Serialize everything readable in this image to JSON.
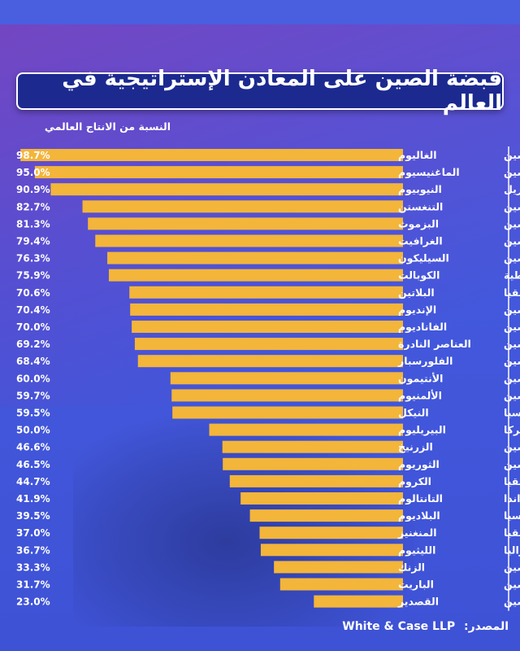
{
  "colors": {
    "bar": "#f3b53a",
    "divider": "#ffffff",
    "title_bg": "#1c2a8f",
    "text": "#ffffff"
  },
  "title": "قبضة الصين على المعادن الإستراتيجية في العالم",
  "subtitle": "النسبة  من الانتاج العالمي",
  "source": {
    "label": "المصدر:",
    "value": "White & Case LLP"
  },
  "chart_data": {
    "type": "bar",
    "orientation": "horizontal",
    "title": "قبضة الصين على المعادن الإستراتيجية في العالم",
    "xlabel": "النسبة  من الانتاج العالمي",
    "ylabel": "",
    "xlim": [
      0,
      100
    ],
    "value_suffix": "%",
    "rows": [
      {
        "mineral": "الغاليوم",
        "country": "الصين",
        "value": 98.7
      },
      {
        "mineral": "الماغنيسيوم",
        "country": "الصين",
        "value": 95.0
      },
      {
        "mineral": "النيوبيوم",
        "country": "البرازيل",
        "value": 90.9
      },
      {
        "mineral": "التنغستن",
        "country": "الصين",
        "value": 82.7
      },
      {
        "mineral": "البزموث",
        "country": "الصين",
        "value": 81.3
      },
      {
        "mineral": "الغرافيت",
        "country": "الصين",
        "value": 79.4
      },
      {
        "mineral": "السيليكون",
        "country": "الصين",
        "value": 76.3
      },
      {
        "mineral": "الكوبالت",
        "country": "الكونغو الديمقراطية",
        "value": 75.9
      },
      {
        "mineral": "البلاتين",
        "country": "جنوب أفريقيا",
        "value": 70.6
      },
      {
        "mineral": "الإنديوم",
        "country": "الصين",
        "value": 70.4
      },
      {
        "mineral": "الفاناديوم",
        "country": "الصين",
        "value": 70.0
      },
      {
        "mineral": "العناصر النادرة",
        "country": "الصين",
        "value": 69.2
      },
      {
        "mineral": "الفلورسبار",
        "country": "الصين",
        "value": 68.4
      },
      {
        "mineral": "الأنتيمون",
        "country": "الصين",
        "value": 60.0
      },
      {
        "mineral": "الألمنيوم",
        "country": "الصين",
        "value": 59.7
      },
      {
        "mineral": "النيكل",
        "country": "إندونيسيا",
        "value": 59.5
      },
      {
        "mineral": "البيريليوم",
        "country": "أميركا",
        "value": 50.0
      },
      {
        "mineral": "الزرنيخ",
        "country": "الصين",
        "value": 46.6
      },
      {
        "mineral": "الثوريوم",
        "country": "الصين",
        "value": 46.5
      },
      {
        "mineral": "الكروم",
        "country": "جنوب أفريقيا",
        "value": 44.7
      },
      {
        "mineral": "التانتالوم",
        "country": "رواندا",
        "value": 41.9
      },
      {
        "mineral": "البلاديوم",
        "country": "روسيا",
        "value": 39.5
      },
      {
        "mineral": "المنغنيز",
        "country": "جنوب أفريقيا",
        "value": 37.0
      },
      {
        "mineral": "الليثيوم",
        "country": "أستراليا",
        "value": 36.7
      },
      {
        "mineral": "الزنك",
        "country": "الصين",
        "value": 33.3
      },
      {
        "mineral": "الباريت",
        "country": "الصين",
        "value": 31.7
      },
      {
        "mineral": "القصدير",
        "country": "الصين",
        "value": 23.0
      }
    ]
  }
}
